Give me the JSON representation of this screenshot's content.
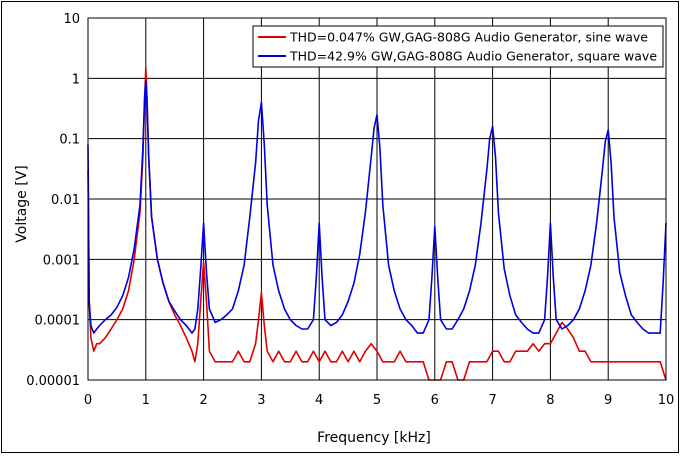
{
  "chart_data": {
    "type": "line",
    "title": "",
    "xlabel": "Frequency [kHz]",
    "ylabel": "Voltage [V]",
    "xlim": [
      0,
      10
    ],
    "ylim": [
      1e-05,
      10
    ],
    "yscale": "log",
    "grid": true,
    "legend_position": "top-right",
    "x_ticks": [
      "0",
      "1",
      "2",
      "3",
      "4",
      "5",
      "6",
      "7",
      "8",
      "9",
      "10"
    ],
    "y_ticks": [
      "0.00001",
      "0.0001",
      "0.001",
      "0.01",
      "0.1",
      "1",
      "10"
    ],
    "colors": {
      "sine": "#e00000",
      "square": "#0000e0"
    },
    "series": [
      {
        "name": "THD=0.047% GW,GAG-808G Audio Generator, sine wave",
        "color": "#e00000",
        "x": [
          0,
          0.02,
          0.05,
          0.1,
          0.15,
          0.2,
          0.3,
          0.4,
          0.5,
          0.6,
          0.7,
          0.8,
          0.9,
          0.95,
          0.98,
          1.0,
          1.02,
          1.05,
          1.1,
          1.2,
          1.3,
          1.4,
          1.5,
          1.6,
          1.7,
          1.8,
          1.85,
          1.9,
          1.95,
          2.0,
          2.05,
          2.1,
          2.2,
          2.3,
          2.4,
          2.5,
          2.6,
          2.7,
          2.8,
          2.9,
          2.95,
          3.0,
          3.05,
          3.1,
          3.2,
          3.3,
          3.4,
          3.5,
          3.6,
          3.7,
          3.8,
          3.9,
          4.0,
          4.1,
          4.2,
          4.3,
          4.4,
          4.5,
          4.6,
          4.7,
          4.8,
          4.9,
          5.0,
          5.1,
          5.2,
          5.3,
          5.4,
          5.5,
          5.6,
          5.7,
          5.8,
          5.9,
          6.0,
          6.1,
          6.2,
          6.3,
          6.4,
          6.5,
          6.6,
          6.7,
          6.8,
          6.9,
          7.0,
          7.1,
          7.2,
          7.3,
          7.4,
          7.5,
          7.6,
          7.7,
          7.8,
          7.9,
          8.0,
          8.1,
          8.2,
          8.3,
          8.4,
          8.5,
          8.6,
          8.7,
          8.8,
          8.9,
          9.0,
          9.1,
          9.2,
          9.3,
          9.4,
          9.5,
          9.6,
          9.7,
          9.8,
          9.9,
          10.0
        ],
        "values": [
          0.03,
          0.0002,
          5e-05,
          3e-05,
          4e-05,
          4e-05,
          5e-05,
          7e-05,
          0.0001,
          0.00015,
          0.0003,
          0.001,
          0.006,
          0.05,
          0.4,
          1.5,
          0.5,
          0.05,
          0.005,
          0.001,
          0.0004,
          0.0002,
          0.00012,
          8e-05,
          5e-05,
          3e-05,
          2e-05,
          4e-05,
          0.0002,
          0.0009,
          0.0002,
          3e-05,
          2e-05,
          2e-05,
          2e-05,
          2e-05,
          3e-05,
          2e-05,
          2e-05,
          4e-05,
          0.0001,
          0.00028,
          8e-05,
          3e-05,
          2e-05,
          3e-05,
          2e-05,
          2e-05,
          3e-05,
          2e-05,
          2e-05,
          3e-05,
          2e-05,
          3e-05,
          2e-05,
          2e-05,
          3e-05,
          2e-05,
          3e-05,
          2e-05,
          3e-05,
          4e-05,
          3e-05,
          2e-05,
          2e-05,
          2e-05,
          3e-05,
          2e-05,
          2e-05,
          2e-05,
          2e-05,
          1e-05,
          1e-05,
          1e-05,
          2e-05,
          2e-05,
          1e-05,
          1e-05,
          2e-05,
          2e-05,
          2e-05,
          2e-05,
          3e-05,
          3e-05,
          2e-05,
          2e-05,
          3e-05,
          3e-05,
          3e-05,
          4e-05,
          3e-05,
          4e-05,
          4e-05,
          6e-05,
          9e-05,
          7e-05,
          5e-05,
          3e-05,
          3e-05,
          2e-05,
          2e-05,
          2e-05,
          2e-05,
          2e-05,
          2e-05,
          2e-05,
          2e-05,
          2e-05,
          2e-05,
          2e-05,
          2e-05,
          2e-05,
          1e-05
        ]
      },
      {
        "name": "THD=42.9% GW,GAG-808G Audio Generator, square wave",
        "color": "#0000e0",
        "x": [
          0,
          0.02,
          0.05,
          0.1,
          0.15,
          0.2,
          0.3,
          0.4,
          0.5,
          0.6,
          0.7,
          0.8,
          0.9,
          0.95,
          0.98,
          1.0,
          1.02,
          1.05,
          1.1,
          1.2,
          1.3,
          1.4,
          1.5,
          1.6,
          1.7,
          1.8,
          1.85,
          1.9,
          1.95,
          2.0,
          2.05,
          2.1,
          2.2,
          2.3,
          2.4,
          2.5,
          2.6,
          2.7,
          2.8,
          2.9,
          2.95,
          3.0,
          3.05,
          3.1,
          3.2,
          3.3,
          3.4,
          3.5,
          3.6,
          3.7,
          3.8,
          3.9,
          3.95,
          4.0,
          4.05,
          4.1,
          4.2,
          4.3,
          4.4,
          4.5,
          4.6,
          4.7,
          4.8,
          4.9,
          4.95,
          5.0,
          5.05,
          5.1,
          5.2,
          5.3,
          5.4,
          5.5,
          5.6,
          5.7,
          5.8,
          5.9,
          5.95,
          6.0,
          6.05,
          6.1,
          6.2,
          6.3,
          6.4,
          6.5,
          6.6,
          6.7,
          6.8,
          6.9,
          6.95,
          7.0,
          7.05,
          7.1,
          7.2,
          7.3,
          7.4,
          7.5,
          7.6,
          7.7,
          7.8,
          7.9,
          7.95,
          8.0,
          8.05,
          8.1,
          8.2,
          8.3,
          8.4,
          8.5,
          8.6,
          8.7,
          8.8,
          8.9,
          8.95,
          9.0,
          9.05,
          9.1,
          9.2,
          9.3,
          9.4,
          9.5,
          9.6,
          9.7,
          9.8,
          9.9,
          9.95,
          10.0
        ],
        "values": [
          0.08,
          0.0002,
          8e-05,
          6e-05,
          7e-05,
          8e-05,
          0.0001,
          0.00012,
          0.00016,
          0.00025,
          0.0005,
          0.0015,
          0.008,
          0.07,
          0.5,
          0.9,
          0.4,
          0.05,
          0.005,
          0.001,
          0.0004,
          0.0002,
          0.00014,
          0.0001,
          8e-05,
          6e-05,
          7e-05,
          0.00015,
          0.0007,
          0.004,
          0.0006,
          0.00015,
          9e-05,
          0.0001,
          0.00012,
          0.00015,
          0.0003,
          0.0008,
          0.005,
          0.04,
          0.2,
          0.4,
          0.08,
          0.008,
          0.0008,
          0.0003,
          0.00015,
          0.0001,
          8e-05,
          7e-05,
          7e-05,
          0.0001,
          0.0005,
          0.004,
          0.0005,
          0.0001,
          8e-05,
          9e-05,
          0.00012,
          0.0002,
          0.0004,
          0.0012,
          0.006,
          0.05,
          0.15,
          0.25,
          0.07,
          0.008,
          0.0008,
          0.0003,
          0.00015,
          0.0001,
          8e-05,
          6e-05,
          6e-05,
          0.0001,
          0.0005,
          0.0035,
          0.0005,
          0.0001,
          7e-05,
          7e-05,
          0.0001,
          0.00015,
          0.0003,
          0.0008,
          0.004,
          0.03,
          0.1,
          0.16,
          0.05,
          0.006,
          0.0007,
          0.00025,
          0.00012,
          9e-05,
          7e-05,
          6e-05,
          6e-05,
          0.0001,
          0.0005,
          0.004,
          0.0005,
          0.0001,
          7e-05,
          8e-05,
          0.0001,
          0.00015,
          0.0003,
          0.0008,
          0.004,
          0.03,
          0.09,
          0.14,
          0.04,
          0.005,
          0.0006,
          0.00025,
          0.00012,
          9e-05,
          7e-05,
          6e-05,
          6e-05,
          6e-05,
          0.0004,
          0.004
        ]
      }
    ]
  }
}
